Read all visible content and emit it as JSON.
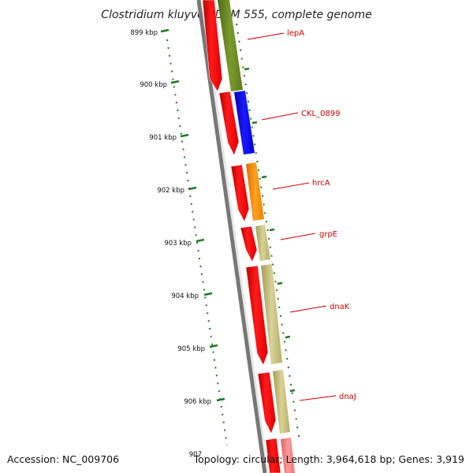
{
  "title": "Clostridium kluyveri DSM 555, complete genome",
  "accession": "Accession: NC_009706",
  "topology": "Topology: circular; Length: 3,964,618 bp; Genes: 3,919",
  "ticks": [
    {
      "label": "899 kbp"
    },
    {
      "label": "900 kbp"
    },
    {
      "label": "901 kbp"
    },
    {
      "label": "902 kbp"
    },
    {
      "label": "903 kbp"
    },
    {
      "label": "904 kbp"
    },
    {
      "label": "905 kbp"
    },
    {
      "label": "906 kbp"
    },
    {
      "label": "907"
    }
  ],
  "genes": [
    {
      "label": "lepA"
    },
    {
      "label": "CKL_0899"
    },
    {
      "label": "hrcA"
    },
    {
      "label": "grpE"
    },
    {
      "label": "dnaK"
    },
    {
      "label": "dnaJ"
    }
  ],
  "colors": {
    "cds_strand": "#ff0000",
    "tick_green": "#1f7a1f",
    "label_red": "#cc0000",
    "backbone": "#888888",
    "lepA": "#6b8e23",
    "CKL_0899": "#0000ff",
    "hrcA": "#ff8c00",
    "grpE": "#bdb76b",
    "dnaK": "#bdb76b",
    "dnaJ": "#bdb76b",
    "next_gene": "#f08080"
  }
}
